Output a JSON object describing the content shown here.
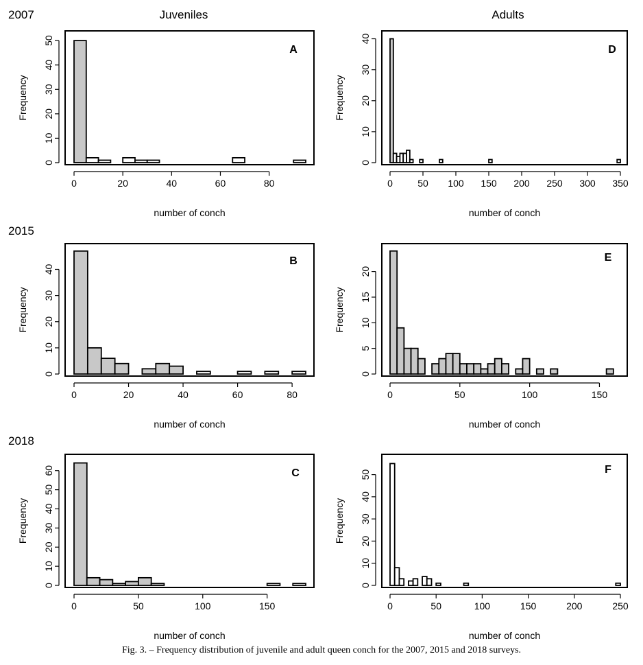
{
  "figure": {
    "col_titles": [
      "Juveniles",
      "Adults"
    ],
    "row_years": [
      "2007",
      "2015",
      "2018"
    ],
    "caption": "Fig. 3. – Frequency distribution of juvenile and adult queen conch for the 2007, 2015 and 2018 surveys."
  },
  "chart_data": [
    {
      "type": "bar",
      "panel": "A",
      "group": "Juveniles",
      "year": "2007",
      "xlabel": "number of conch",
      "ylabel": "Frequency",
      "xlim": [
        0,
        95
      ],
      "ylim": [
        0,
        52
      ],
      "xticks": [
        0,
        20,
        40,
        60,
        80
      ],
      "yticks": [
        0,
        10,
        20,
        30,
        40,
        50
      ],
      "bin_width": 5,
      "bins": [
        [
          0,
          5,
          50
        ],
        [
          5,
          10,
          2
        ],
        [
          10,
          15,
          1
        ],
        [
          15,
          20,
          0
        ],
        [
          20,
          25,
          2
        ],
        [
          25,
          30,
          1
        ],
        [
          30,
          35,
          1
        ],
        [
          35,
          40,
          0
        ],
        [
          40,
          45,
          0
        ],
        [
          45,
          50,
          0
        ],
        [
          50,
          55,
          0
        ],
        [
          55,
          60,
          0
        ],
        [
          60,
          65,
          0
        ],
        [
          65,
          70,
          2
        ],
        [
          70,
          75,
          0
        ],
        [
          75,
          80,
          0
        ],
        [
          80,
          85,
          0
        ],
        [
          85,
          90,
          0
        ],
        [
          90,
          95,
          1
        ]
      ],
      "fill_bins": 1
    },
    {
      "type": "bar",
      "panel": "D",
      "group": "Adults",
      "year": "2007",
      "xlabel": "number of conch",
      "ylabel": "Frequency",
      "xlim": [
        0,
        350
      ],
      "ylim": [
        0,
        41
      ],
      "xticks": [
        0,
        50,
        100,
        150,
        200,
        250,
        300,
        350
      ],
      "yticks": [
        0,
        10,
        20,
        30,
        40
      ],
      "bin_width": 5,
      "bins": [
        [
          0,
          5,
          40
        ],
        [
          5,
          10,
          3
        ],
        [
          10,
          15,
          2
        ],
        [
          15,
          20,
          3
        ],
        [
          20,
          25,
          3
        ],
        [
          25,
          30,
          4
        ],
        [
          30,
          35,
          1
        ],
        [
          45,
          50,
          1
        ],
        [
          75,
          80,
          1
        ],
        [
          150,
          155,
          1
        ],
        [
          345,
          350,
          1
        ]
      ],
      "fill_bins": 1
    },
    {
      "type": "bar",
      "panel": "B",
      "group": "Juveniles",
      "year": "2015",
      "xlabel": "number of conch",
      "ylabel": "Frequency",
      "xlim": [
        0,
        85
      ],
      "ylim": [
        0,
        48
      ],
      "xticks": [
        0,
        20,
        40,
        60,
        80
      ],
      "yticks": [
        0,
        10,
        20,
        30,
        40
      ],
      "bin_width": 5,
      "bins": [
        [
          0,
          5,
          47
        ],
        [
          5,
          10,
          10
        ],
        [
          10,
          15,
          6
        ],
        [
          15,
          20,
          4
        ],
        [
          20,
          25,
          0
        ],
        [
          25,
          30,
          2
        ],
        [
          30,
          35,
          4
        ],
        [
          35,
          40,
          3
        ],
        [
          40,
          45,
          0
        ],
        [
          45,
          50,
          1
        ],
        [
          50,
          55,
          0
        ],
        [
          55,
          60,
          0
        ],
        [
          60,
          65,
          1
        ],
        [
          65,
          70,
          0
        ],
        [
          70,
          75,
          1
        ],
        [
          75,
          80,
          0
        ],
        [
          80,
          85,
          1
        ]
      ],
      "fill_bins": 8
    },
    {
      "type": "bar",
      "panel": "E",
      "group": "Adults",
      "year": "2015",
      "xlabel": "number of conch",
      "ylabel": "Frequency",
      "xlim": [
        0,
        165
      ],
      "ylim": [
        0,
        24.5
      ],
      "xticks": [
        0,
        50,
        100,
        150
      ],
      "yticks": [
        0,
        5,
        10,
        15,
        20
      ],
      "bin_width": 5,
      "bins": [
        [
          0,
          5,
          24
        ],
        [
          5,
          10,
          9
        ],
        [
          10,
          15,
          5
        ],
        [
          15,
          20,
          5
        ],
        [
          20,
          25,
          3
        ],
        [
          25,
          30,
          0
        ],
        [
          30,
          35,
          2
        ],
        [
          35,
          40,
          3
        ],
        [
          40,
          45,
          4
        ],
        [
          45,
          50,
          4
        ],
        [
          50,
          55,
          2
        ],
        [
          55,
          60,
          2
        ],
        [
          60,
          65,
          2
        ],
        [
          65,
          70,
          1
        ],
        [
          70,
          75,
          2
        ],
        [
          75,
          80,
          3
        ],
        [
          80,
          85,
          2
        ],
        [
          85,
          90,
          0
        ],
        [
          90,
          95,
          1
        ],
        [
          95,
          100,
          3
        ],
        [
          100,
          105,
          0
        ],
        [
          105,
          110,
          1
        ],
        [
          110,
          115,
          0
        ],
        [
          115,
          120,
          1
        ],
        [
          120,
          125,
          0
        ],
        [
          125,
          130,
          0
        ],
        [
          130,
          135,
          0
        ],
        [
          135,
          140,
          0
        ],
        [
          140,
          145,
          0
        ],
        [
          145,
          150,
          0
        ],
        [
          150,
          155,
          0
        ],
        [
          155,
          160,
          1
        ]
      ],
      "fill_bins": 32
    },
    {
      "type": "bar",
      "panel": "C",
      "group": "Juveniles",
      "year": "2018",
      "xlabel": "number of conch",
      "ylabel": "Frequency",
      "xlim": [
        0,
        180
      ],
      "ylim": [
        0,
        66
      ],
      "xticks": [
        0,
        50,
        100,
        150
      ],
      "yticks": [
        0,
        10,
        20,
        30,
        40,
        50,
        60
      ],
      "bin_width": 10,
      "bins": [
        [
          0,
          10,
          64
        ],
        [
          10,
          20,
          4
        ],
        [
          20,
          30,
          3
        ],
        [
          30,
          40,
          1
        ],
        [
          40,
          50,
          2
        ],
        [
          50,
          60,
          4
        ],
        [
          60,
          70,
          1
        ],
        [
          150,
          160,
          1
        ],
        [
          170,
          180,
          1
        ]
      ],
      "fill_bins": 7
    },
    {
      "type": "bar",
      "panel": "F",
      "group": "Adults",
      "year": "2018",
      "xlabel": "number of conch",
      "ylabel": "Frequency",
      "xlim": [
        0,
        250
      ],
      "ylim": [
        0,
        57
      ],
      "xticks": [
        0,
        50,
        100,
        150,
        200,
        250
      ],
      "yticks": [
        0,
        10,
        20,
        30,
        40,
        50
      ],
      "bin_width": 5,
      "bins": [
        [
          0,
          5,
          55
        ],
        [
          5,
          10,
          8
        ],
        [
          10,
          15,
          3
        ],
        [
          15,
          20,
          0
        ],
        [
          20,
          25,
          2
        ],
        [
          25,
          30,
          3
        ],
        [
          30,
          35,
          0
        ],
        [
          35,
          40,
          4
        ],
        [
          40,
          45,
          3
        ],
        [
          45,
          50,
          0
        ],
        [
          50,
          55,
          1
        ],
        [
          80,
          85,
          1
        ],
        [
          245,
          250,
          1
        ]
      ],
      "fill_bins": 0
    }
  ]
}
